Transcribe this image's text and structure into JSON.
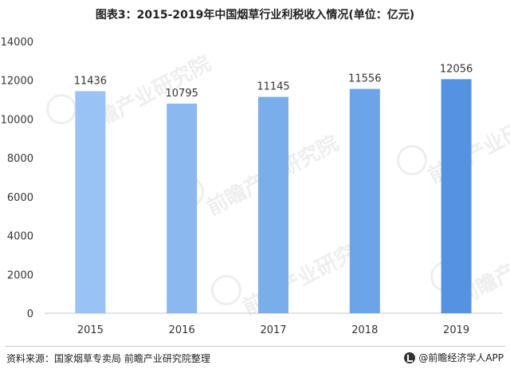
{
  "title": "图表3：2015-2019年中国烟草行业利税收入情况(单位：亿元)",
  "source": "资料来源：国家烟草专卖局 前瞻产业研究院整理",
  "brand": "@前瞻经济学人APP",
  "watermark": "前瞻产业研究院",
  "colors": {
    "bars": [
      "#99c3f3",
      "#8bb8ef",
      "#7aaeeb",
      "#6ba4e8",
      "#5593e2"
    ],
    "axis": "#c8c8c8",
    "text": "#333333"
  },
  "chart_data": {
    "type": "bar",
    "title": "图表3：2015-2019年中国烟草行业利税收入情况(单位：亿元)",
    "categories": [
      "2015",
      "2016",
      "2017",
      "2018",
      "2019"
    ],
    "values": [
      11436,
      10795,
      11145,
      11556,
      12056
    ],
    "data_labels": [
      "11436",
      "10795",
      "11145",
      "11556",
      "12056"
    ],
    "ylim": [
      0,
      14000
    ],
    "yticks": [
      0,
      2000,
      4000,
      6000,
      8000,
      10000,
      12000,
      14000
    ],
    "ytick_labels": [
      "0",
      "2000",
      "4000",
      "6000",
      "8000",
      "10000",
      "12000",
      "14000"
    ],
    "grid": false,
    "legend": "none"
  }
}
